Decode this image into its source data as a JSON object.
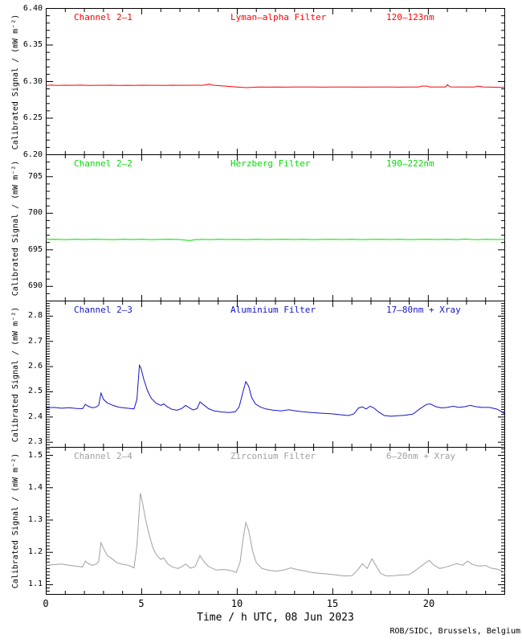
{
  "figure": {
    "background": "#ffffff",
    "axis_color": "#000000",
    "ylabel": "Calibrated Signal / (mW m⁻²)",
    "xlabel": "Time / h UTC, 08 Jun 2023",
    "credit": "ROB/SIDC, Brussels, Belgium"
  },
  "chart_data": [
    {
      "type": "line",
      "channel": "Channel 2–1",
      "filter": "Lyman–alpha Filter",
      "band": "120–123nm",
      "color": "#ff0000",
      "xlim": [
        0,
        24
      ],
      "xticks": [
        0,
        5,
        10,
        15,
        20
      ],
      "xtick_labels": [
        "0",
        "5",
        "10",
        "15",
        "20"
      ],
      "x_minor_step": 1,
      "ylim": [
        6.2,
        6.4
      ],
      "yticks": [
        6.2,
        6.25,
        6.3,
        6.35,
        6.4
      ],
      "ytick_labels": [
        "6.20",
        "6.25",
        "6.30",
        "6.35",
        "6.40"
      ],
      "y_minor_step": 0.01,
      "points": [
        [
          0,
          6.295
        ],
        [
          0.3,
          6.2952
        ],
        [
          0.6,
          6.2948
        ],
        [
          1.0,
          6.2951
        ],
        [
          1.4,
          6.2949
        ],
        [
          1.8,
          6.2952
        ],
        [
          2.2,
          6.2948
        ],
        [
          2.6,
          6.295
        ],
        [
          3.0,
          6.2949
        ],
        [
          3.4,
          6.2951
        ],
        [
          3.8,
          6.2947
        ],
        [
          4.2,
          6.295
        ],
        [
          4.6,
          6.2948
        ],
        [
          5.0,
          6.2951
        ],
        [
          5.4,
          6.2949
        ],
        [
          5.8,
          6.295
        ],
        [
          6.2,
          6.2948
        ],
        [
          6.6,
          6.2951
        ],
        [
          7.0,
          6.2949
        ],
        [
          7.4,
          6.295
        ],
        [
          7.8,
          6.2951
        ],
        [
          8.2,
          6.2949
        ],
        [
          8.55,
          6.2965
        ],
        [
          8.7,
          6.2952
        ],
        [
          9.0,
          6.2945
        ],
        [
          9.3,
          6.294
        ],
        [
          9.6,
          6.2933
        ],
        [
          9.9,
          6.2928
        ],
        [
          10.2,
          6.2922
        ],
        [
          10.5,
          6.2918
        ],
        [
          10.8,
          6.2922
        ],
        [
          11.2,
          6.2926
        ],
        [
          11.6,
          6.2924
        ],
        [
          12.0,
          6.2926
        ],
        [
          12.5,
          6.2924
        ],
        [
          13.0,
          6.2926
        ],
        [
          13.5,
          6.2925
        ],
        [
          14.0,
          6.2926
        ],
        [
          14.5,
          6.2924
        ],
        [
          15.0,
          6.2926
        ],
        [
          15.5,
          6.2925
        ],
        [
          16.0,
          6.2926
        ],
        [
          16.5,
          6.2924
        ],
        [
          17.0,
          6.2926
        ],
        [
          17.5,
          6.2925
        ],
        [
          18.0,
          6.2926
        ],
        [
          18.5,
          6.2924
        ],
        [
          19.0,
          6.2925
        ],
        [
          19.5,
          6.2925
        ],
        [
          19.65,
          6.2938
        ],
        [
          19.95,
          6.2938
        ],
        [
          20.1,
          6.2925
        ],
        [
          20.5,
          6.2926
        ],
        [
          20.9,
          6.2926
        ],
        [
          21.0,
          6.2958
        ],
        [
          21.15,
          6.2928
        ],
        [
          21.6,
          6.2925
        ],
        [
          22.0,
          6.2926
        ],
        [
          22.4,
          6.2925
        ],
        [
          22.6,
          6.2938
        ],
        [
          22.9,
          6.2926
        ],
        [
          23.3,
          6.2924
        ],
        [
          23.7,
          6.2922
        ],
        [
          24,
          6.2922
        ]
      ]
    },
    {
      "type": "line",
      "channel": "Channel 2–2",
      "filter": "Herzberg Filter",
      "band": "190–222nm",
      "color": "#00dd00",
      "xlim": [
        0,
        24
      ],
      "xticks": [
        0,
        5,
        10,
        15,
        20
      ],
      "xtick_labels": [
        "0",
        "5",
        "10",
        "15",
        "20"
      ],
      "x_minor_step": 1,
      "ylim": [
        688,
        708
      ],
      "yticks": [
        690,
        695,
        700,
        705
      ],
      "ytick_labels": [
        "690",
        "695",
        "700",
        "705"
      ],
      "y_minor_step": 1,
      "points": [
        [
          0,
          696.42
        ],
        [
          0.5,
          696.44
        ],
        [
          1,
          696.4
        ],
        [
          1.5,
          696.43
        ],
        [
          2,
          696.41
        ],
        [
          2.5,
          696.44
        ],
        [
          3,
          696.42
        ],
        [
          3.5,
          696.4
        ],
        [
          4,
          696.43
        ],
        [
          4.5,
          696.41
        ],
        [
          5,
          696.43
        ],
        [
          5.5,
          696.4
        ],
        [
          6,
          696.42
        ],
        [
          6.5,
          696.44
        ],
        [
          7,
          696.41
        ],
        [
          7.35,
          696.3
        ],
        [
          7.55,
          696.28
        ],
        [
          7.8,
          696.4
        ],
        [
          8.2,
          696.42
        ],
        [
          8.6,
          696.4
        ],
        [
          9,
          696.43
        ],
        [
          9.5,
          696.41
        ],
        [
          10,
          696.42
        ],
        [
          10.5,
          696.4
        ],
        [
          11,
          696.43
        ],
        [
          11.5,
          696.41
        ],
        [
          12,
          696.42
        ],
        [
          12.5,
          696.44
        ],
        [
          13,
          696.41
        ],
        [
          13.5,
          696.43
        ],
        [
          14,
          696.4
        ],
        [
          14.5,
          696.42
        ],
        [
          15,
          696.44
        ],
        [
          15.5,
          696.41
        ],
        [
          16,
          696.43
        ],
        [
          16.5,
          696.4
        ],
        [
          17,
          696.42
        ],
        [
          17.5,
          696.43
        ],
        [
          18,
          696.41
        ],
        [
          18.5,
          696.43
        ],
        [
          19,
          696.4
        ],
        [
          19.5,
          696.42
        ],
        [
          20,
          696.44
        ],
        [
          20.5,
          696.41
        ],
        [
          21,
          696.43
        ],
        [
          21.5,
          696.4
        ],
        [
          21.9,
          696.46
        ],
        [
          22.2,
          696.42
        ],
        [
          22.6,
          696.4
        ],
        [
          23,
          696.43
        ],
        [
          23.5,
          696.41
        ],
        [
          24,
          696.42
        ]
      ]
    },
    {
      "type": "line",
      "channel": "Channel 2–3",
      "filter": "Aluminium Filter",
      "band": "17–80nm + Xray",
      "color": "#1414cc",
      "xlim": [
        0,
        24
      ],
      "xticks": [
        0,
        5,
        10,
        15,
        20
      ],
      "xtick_labels": [
        "0",
        "5",
        "10",
        "15",
        "20"
      ],
      "x_minor_step": 1,
      "ylim": [
        2.28,
        2.86
      ],
      "yticks": [
        2.3,
        2.4,
        2.5,
        2.6,
        2.7,
        2.8
      ],
      "ytick_labels": [
        "2.3",
        "2.4",
        "2.5",
        "2.6",
        "2.7",
        "2.8"
      ],
      "y_minor_step": 0.01,
      "points": [
        [
          0,
          2.436
        ],
        [
          0.4,
          2.438
        ],
        [
          0.8,
          2.435
        ],
        [
          1.2,
          2.437
        ],
        [
          1.6,
          2.434
        ],
        [
          1.9,
          2.433
        ],
        [
          2.05,
          2.45
        ],
        [
          2.2,
          2.443
        ],
        [
          2.4,
          2.437
        ],
        [
          2.6,
          2.439
        ],
        [
          2.75,
          2.447
        ],
        [
          2.87,
          2.495
        ],
        [
          3.0,
          2.47
        ],
        [
          3.2,
          2.456
        ],
        [
          3.5,
          2.446
        ],
        [
          3.8,
          2.439
        ],
        [
          4.1,
          2.436
        ],
        [
          4.4,
          2.434
        ],
        [
          4.6,
          2.432
        ],
        [
          4.75,
          2.47
        ],
        [
          4.88,
          2.605
        ],
        [
          4.97,
          2.592
        ],
        [
          5.1,
          2.552
        ],
        [
          5.3,
          2.505
        ],
        [
          5.5,
          2.474
        ],
        [
          5.75,
          2.455
        ],
        [
          6.0,
          2.446
        ],
        [
          6.15,
          2.452
        ],
        [
          6.35,
          2.44
        ],
        [
          6.6,
          2.43
        ],
        [
          6.85,
          2.427
        ],
        [
          7.1,
          2.434
        ],
        [
          7.3,
          2.446
        ],
        [
          7.5,
          2.436
        ],
        [
          7.7,
          2.428
        ],
        [
          7.9,
          2.434
        ],
        [
          8.05,
          2.46
        ],
        [
          8.25,
          2.448
        ],
        [
          8.5,
          2.433
        ],
        [
          8.8,
          2.424
        ],
        [
          9.2,
          2.42
        ],
        [
          9.6,
          2.418
        ],
        [
          9.9,
          2.421
        ],
        [
          10.1,
          2.44
        ],
        [
          10.3,
          2.5
        ],
        [
          10.45,
          2.54
        ],
        [
          10.6,
          2.522
        ],
        [
          10.75,
          2.478
        ],
        [
          10.95,
          2.452
        ],
        [
          11.2,
          2.44
        ],
        [
          11.5,
          2.432
        ],
        [
          11.9,
          2.427
        ],
        [
          12.3,
          2.424
        ],
        [
          12.7,
          2.429
        ],
        [
          13.0,
          2.425
        ],
        [
          13.4,
          2.421
        ],
        [
          13.9,
          2.418
        ],
        [
          14.4,
          2.415
        ],
        [
          14.9,
          2.413
        ],
        [
          15.4,
          2.409
        ],
        [
          15.8,
          2.406
        ],
        [
          16.1,
          2.412
        ],
        [
          16.35,
          2.436
        ],
        [
          16.55,
          2.44
        ],
        [
          16.75,
          2.432
        ],
        [
          16.95,
          2.443
        ],
        [
          17.15,
          2.436
        ],
        [
          17.4,
          2.42
        ],
        [
          17.7,
          2.406
        ],
        [
          18.05,
          2.403
        ],
        [
          18.4,
          2.405
        ],
        [
          18.8,
          2.407
        ],
        [
          19.2,
          2.412
        ],
        [
          19.55,
          2.432
        ],
        [
          19.9,
          2.45
        ],
        [
          20.1,
          2.452
        ],
        [
          20.4,
          2.441
        ],
        [
          20.7,
          2.436
        ],
        [
          21.0,
          2.438
        ],
        [
          21.3,
          2.443
        ],
        [
          21.6,
          2.438
        ],
        [
          21.9,
          2.441
        ],
        [
          22.2,
          2.446
        ],
        [
          22.5,
          2.441
        ],
        [
          22.8,
          2.438
        ],
        [
          23.2,
          2.438
        ],
        [
          23.6,
          2.431
        ],
        [
          23.85,
          2.421
        ],
        [
          24,
          2.412
        ]
      ]
    },
    {
      "type": "line",
      "channel": "Channel 2–4",
      "filter": "Zirconium Filter",
      "band": "6–20nm + Xray",
      "color": "#a0a0a0",
      "xlim": [
        0,
        24
      ],
      "xticks": [
        0,
        5,
        10,
        15,
        20
      ],
      "xtick_labels": [
        "0",
        "5",
        "10",
        "15",
        "20"
      ],
      "x_minor_step": 1,
      "ylim": [
        1.07,
        1.525
      ],
      "yticks": [
        1.1,
        1.2,
        1.3,
        1.4,
        1.5
      ],
      "ytick_labels": [
        "1.1",
        "1.2",
        "1.3",
        "1.4",
        "1.5"
      ],
      "y_minor_step": 0.01,
      "points": [
        [
          0,
          1.16
        ],
        [
          0.4,
          1.162
        ],
        [
          0.8,
          1.164
        ],
        [
          1.2,
          1.16
        ],
        [
          1.6,
          1.157
        ],
        [
          1.9,
          1.155
        ],
        [
          2.05,
          1.173
        ],
        [
          2.2,
          1.166
        ],
        [
          2.4,
          1.16
        ],
        [
          2.6,
          1.163
        ],
        [
          2.75,
          1.172
        ],
        [
          2.87,
          1.23
        ],
        [
          3.0,
          1.212
        ],
        [
          3.2,
          1.19
        ],
        [
          3.45,
          1.18
        ],
        [
          3.7,
          1.168
        ],
        [
          4.0,
          1.163
        ],
        [
          4.3,
          1.16
        ],
        [
          4.6,
          1.152
        ],
        [
          4.75,
          1.22
        ],
        [
          4.93,
          1.383
        ],
        [
          5.05,
          1.352
        ],
        [
          5.2,
          1.302
        ],
        [
          5.4,
          1.252
        ],
        [
          5.6,
          1.212
        ],
        [
          5.8,
          1.19
        ],
        [
          6.0,
          1.178
        ],
        [
          6.15,
          1.183
        ],
        [
          6.35,
          1.165
        ],
        [
          6.6,
          1.155
        ],
        [
          6.9,
          1.15
        ],
        [
          7.1,
          1.156
        ],
        [
          7.3,
          1.164
        ],
        [
          7.55,
          1.151
        ],
        [
          7.8,
          1.156
        ],
        [
          8.05,
          1.19
        ],
        [
          8.25,
          1.172
        ],
        [
          8.5,
          1.156
        ],
        [
          8.9,
          1.145
        ],
        [
          9.3,
          1.147
        ],
        [
          9.7,
          1.143
        ],
        [
          9.95,
          1.138
        ],
        [
          10.15,
          1.17
        ],
        [
          10.3,
          1.24
        ],
        [
          10.45,
          1.292
        ],
        [
          10.6,
          1.268
        ],
        [
          10.8,
          1.205
        ],
        [
          11.0,
          1.168
        ],
        [
          11.3,
          1.15
        ],
        [
          11.7,
          1.144
        ],
        [
          12.1,
          1.142
        ],
        [
          12.5,
          1.146
        ],
        [
          12.8,
          1.152
        ],
        [
          13.1,
          1.147
        ],
        [
          13.5,
          1.143
        ],
        [
          13.9,
          1.138
        ],
        [
          14.3,
          1.135
        ],
        [
          14.8,
          1.133
        ],
        [
          15.2,
          1.13
        ],
        [
          15.6,
          1.127
        ],
        [
          16.0,
          1.128
        ],
        [
          16.3,
          1.145
        ],
        [
          16.55,
          1.165
        ],
        [
          16.8,
          1.15
        ],
        [
          17.05,
          1.18
        ],
        [
          17.25,
          1.16
        ],
        [
          17.5,
          1.135
        ],
        [
          17.8,
          1.127
        ],
        [
          18.2,
          1.128
        ],
        [
          18.6,
          1.13
        ],
        [
          19.0,
          1.131
        ],
        [
          19.3,
          1.143
        ],
        [
          19.6,
          1.156
        ],
        [
          19.9,
          1.17
        ],
        [
          20.05,
          1.175
        ],
        [
          20.3,
          1.16
        ],
        [
          20.6,
          1.15
        ],
        [
          20.9,
          1.154
        ],
        [
          21.2,
          1.16
        ],
        [
          21.5,
          1.165
        ],
        [
          21.8,
          1.16
        ],
        [
          22.05,
          1.173
        ],
        [
          22.3,
          1.163
        ],
        [
          22.6,
          1.158
        ],
        [
          23.0,
          1.159
        ],
        [
          23.3,
          1.151
        ],
        [
          23.6,
          1.148
        ],
        [
          23.85,
          1.143
        ],
        [
          24,
          1.138
        ]
      ]
    }
  ]
}
